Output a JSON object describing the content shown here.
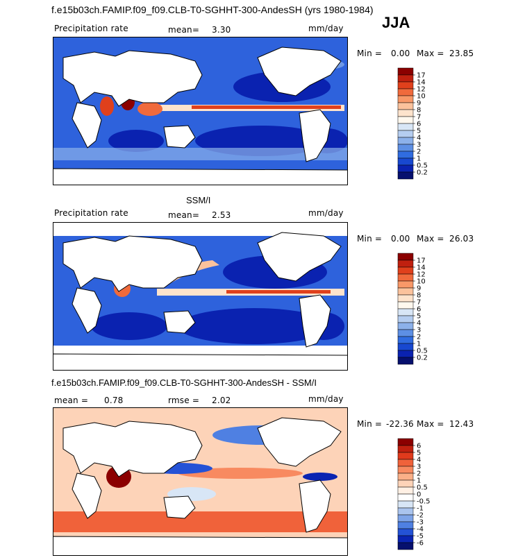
{
  "figure": {
    "main_title": "f.e15b03ch.FAMIP.f09_f09.CLB-T0-SGHHT-300-AndesSH (yrs 1980-1984)",
    "season": "JJA"
  },
  "chart_data": [
    {
      "type": "heatmap",
      "panel": "model",
      "variable_label": "Precipitation rate",
      "stat_label": "mean=",
      "mean": "3.30",
      "units": "mm/day",
      "min_label": "Min =",
      "min": "0.00",
      "max_label": "Max =",
      "max": "23.85",
      "colorbar_levels": [
        "17",
        "14",
        "12",
        "10",
        "9",
        "8",
        "7",
        "6",
        "5",
        "4",
        "3",
        "2",
        "1",
        "0.5",
        "0.2"
      ],
      "colorbar_colors": [
        "#8b0000",
        "#c0200f",
        "#e0401c",
        "#f06a3c",
        "#f89868",
        "#fbc29c",
        "#fde3cc",
        "#fff8ee",
        "#d8e6f6",
        "#b5cdf0",
        "#8cb1ea",
        "#5d8fe4",
        "#306ce0",
        "#1848d0",
        "#0a22b0",
        "#06106e"
      ]
    },
    {
      "type": "heatmap",
      "panel": "observations",
      "panel_title": "SSM/I",
      "variable_label": "Precipitation rate",
      "stat_label": "mean=",
      "mean": "2.53",
      "units": "mm/day",
      "min_label": "Min =",
      "min": "0.00",
      "max_label": "Max =",
      "max": "26.03",
      "colorbar_levels": [
        "17",
        "14",
        "12",
        "10",
        "9",
        "8",
        "7",
        "6",
        "5",
        "4",
        "3",
        "2",
        "1",
        "0.5",
        "0.2"
      ],
      "colorbar_colors": [
        "#8b0000",
        "#c0200f",
        "#e0401c",
        "#f06a3c",
        "#f89868",
        "#fbc29c",
        "#fde3cc",
        "#fff8ee",
        "#d8e6f6",
        "#b5cdf0",
        "#8cb1ea",
        "#5d8fe4",
        "#306ce0",
        "#1848d0",
        "#0a22b0",
        "#06106e"
      ]
    },
    {
      "type": "heatmap",
      "panel": "difference",
      "panel_title": "f.e15b03ch.FAMIP.f09_f09.CLB-T0-SGHHT-300-AndesSH - SSM/I",
      "mean_label": "mean =",
      "mean": "0.78",
      "rmse_label": "rmse =",
      "rmse": "2.02",
      "units": "mm/day",
      "min_label": "Min =",
      "min": "-22.36",
      "max_label": "Max =",
      "max": "12.43",
      "colorbar_levels": [
        "6",
        "5",
        "4",
        "3",
        "2",
        "1",
        "0.5",
        "0",
        "-0.5",
        "-1",
        "-2",
        "-3",
        "-4",
        "-5",
        "-6"
      ],
      "colorbar_colors": [
        "#8b0000",
        "#c0200f",
        "#e03a1c",
        "#f0623a",
        "#f88a60",
        "#fbb088",
        "#fdd3b8",
        "#fff0e4",
        "#ffffff",
        "#d8e6f6",
        "#aac4ee",
        "#7ea4e8",
        "#4f80e2",
        "#2452d6",
        "#0a24b2",
        "#06106e"
      ]
    }
  ],
  "colors": {
    "ocean_blue": "#2e62dc",
    "deep_blue": "#0a22b0",
    "light_blue": "#8cb1ea",
    "itcz_red": "#e0401c",
    "diff_positive": "#fbb088",
    "diff_strong_positive": "#e03a1c",
    "land": "#ffffff"
  }
}
